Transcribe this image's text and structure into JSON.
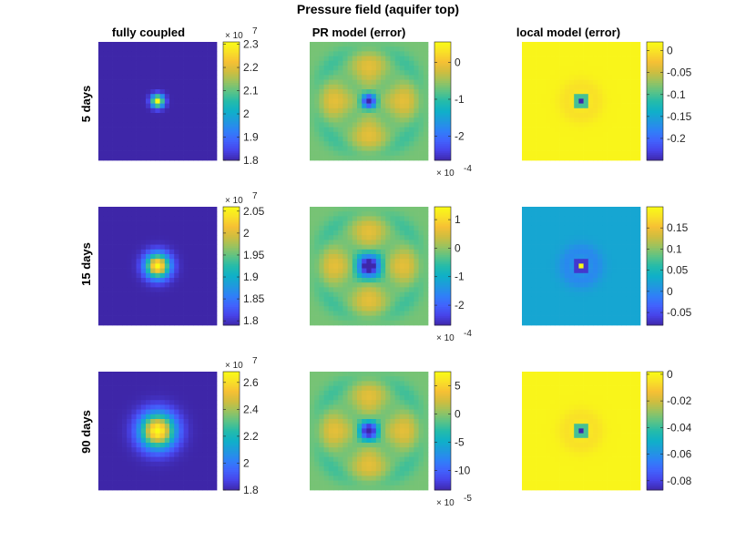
{
  "chart_data": {
    "type": "heatmap",
    "title": "Pressure field (aquifer top)",
    "columns": [
      "fully coupled",
      "PR model (error)",
      "local model (error)"
    ],
    "rows": [
      "5 days",
      "15 days",
      "90 days"
    ],
    "panels": [
      {
        "row": 0,
        "col": 0,
        "pattern": "peak",
        "width": 0.9,
        "clim": [
          1.8,
          2.31
        ],
        "ticks": [
          "1.8",
          "1.9",
          "2",
          "2.1",
          "2.2",
          "2.3"
        ],
        "tick_values": [
          1.8,
          1.9,
          2.0,
          2.1,
          2.2,
          2.3
        ],
        "multiplier_top": "× 10",
        "multiplier_top_exp": "7"
      },
      {
        "row": 0,
        "col": 1,
        "pattern": "pr",
        "width": 1.0,
        "clim": [
          -2.65,
          0.55
        ],
        "ticks": [
          "-2",
          "-1",
          "0"
        ],
        "tick_values": [
          -2,
          -1,
          0
        ],
        "multiplier_bottom": "× 10",
        "multiplier_bottom_exp": "-4"
      },
      {
        "row": 0,
        "col": 2,
        "pattern": "local_neg",
        "width": 0.8,
        "clim": [
          -0.25,
          0.02
        ],
        "ticks": [
          "-0.2",
          "-0.15",
          "-0.1",
          "-0.05",
          "0"
        ],
        "tick_values": [
          -0.2,
          -0.15,
          -0.1,
          -0.05,
          0
        ]
      },
      {
        "row": 1,
        "col": 0,
        "pattern": "peak",
        "width": 1.8,
        "clim": [
          1.79,
          2.06
        ],
        "ticks": [
          "1.8",
          "1.85",
          "1.9",
          "1.95",
          "2",
          "2.05"
        ],
        "tick_values": [
          1.8,
          1.85,
          1.9,
          1.95,
          2.0,
          2.05
        ],
        "multiplier_top": "× 10",
        "multiplier_top_exp": "7"
      },
      {
        "row": 1,
        "col": 1,
        "pattern": "pr",
        "width": 1.7,
        "clim": [
          -2.7,
          1.45
        ],
        "ticks": [
          "-2",
          "-1",
          "0",
          "1"
        ],
        "tick_values": [
          -2,
          -1,
          0,
          1
        ],
        "multiplier_bottom": "× 10",
        "multiplier_bottom_exp": "-4"
      },
      {
        "row": 1,
        "col": 2,
        "pattern": "local_mix",
        "width": 1.0,
        "clim": [
          -0.08,
          0.2
        ],
        "ticks": [
          "-0.05",
          "0",
          "0.05",
          "0.1",
          "0.15"
        ],
        "tick_values": [
          -0.05,
          0,
          0.05,
          0.1,
          0.15
        ]
      },
      {
        "row": 2,
        "col": 0,
        "pattern": "peak",
        "width": 2.6,
        "clim": [
          1.8,
          2.68
        ],
        "ticks": [
          "1.8",
          "2",
          "2.2",
          "2.4",
          "2.6"
        ],
        "tick_values": [
          1.8,
          2.0,
          2.2,
          2.4,
          2.6
        ],
        "multiplier_top": "× 10",
        "multiplier_top_exp": "7"
      },
      {
        "row": 2,
        "col": 1,
        "pattern": "pr",
        "width": 1.3,
        "clim": [
          -13.5,
          7.5
        ],
        "ticks": [
          "-10",
          "-5",
          "0",
          "5"
        ],
        "tick_values": [
          -10,
          -5,
          0,
          5
        ],
        "multiplier_bottom": "× 10",
        "multiplier_bottom_exp": "-5"
      },
      {
        "row": 2,
        "col": 2,
        "pattern": "local_neg",
        "width": 1.0,
        "clim": [
          -0.087,
          0.002
        ],
        "ticks": [
          "-0.08",
          "-0.06",
          "-0.04",
          "-0.02",
          "0"
        ],
        "tick_values": [
          -0.08,
          -0.06,
          -0.04,
          -0.02,
          0
        ]
      }
    ],
    "colormap": [
      "#3e26a8",
      "#4743e8",
      "#4262fd",
      "#2f80f7",
      "#1f99de",
      "#0fb0c8",
      "#24bbaa",
      "#5cc386",
      "#9ac35f",
      "#cfbd3f",
      "#f6c034",
      "#f9e028",
      "#f9fb15"
    ]
  }
}
